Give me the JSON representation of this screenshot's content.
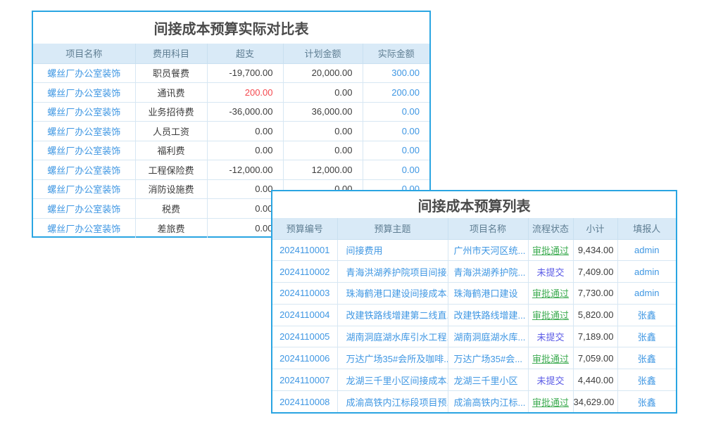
{
  "colors": {
    "accent_border": "#2aa5e2",
    "header_bg": "#d9eaf7",
    "header_text": "#5e7d92",
    "grid_line": "#d7e7f3",
    "link_blue": "#3f97e3",
    "overspend_red": "#f4494f",
    "approved_green": "#3cab50",
    "unsubmitted_purple": "#5a5ae6",
    "body_text": "#3c3c3c",
    "title_text": "#4a4a4a"
  },
  "compare_table": {
    "title": "间接成本预算实际对比表",
    "headers": [
      "项目名称",
      "费用科目",
      "超支",
      "计划金额",
      "实际金额"
    ],
    "rows": [
      {
        "project": "螺丝厂办公室装饰",
        "category": "职员餐费",
        "overspend": "-19,700.00",
        "overspend_alert": false,
        "planned": "20,000.00",
        "actual": "300.00"
      },
      {
        "project": "螺丝厂办公室装饰",
        "category": "通讯费",
        "overspend": "200.00",
        "overspend_alert": true,
        "planned": "0.00",
        "actual": "200.00"
      },
      {
        "project": "螺丝厂办公室装饰",
        "category": "业务招待费",
        "overspend": "-36,000.00",
        "overspend_alert": false,
        "planned": "36,000.00",
        "actual": "0.00"
      },
      {
        "project": "螺丝厂办公室装饰",
        "category": "人员工资",
        "overspend": "0.00",
        "overspend_alert": false,
        "planned": "0.00",
        "actual": "0.00"
      },
      {
        "project": "螺丝厂办公室装饰",
        "category": "福利费",
        "overspend": "0.00",
        "overspend_alert": false,
        "planned": "0.00",
        "actual": "0.00"
      },
      {
        "project": "螺丝厂办公室装饰",
        "category": "工程保险费",
        "overspend": "-12,000.00",
        "overspend_alert": false,
        "planned": "12,000.00",
        "actual": "0.00"
      },
      {
        "project": "螺丝厂办公室装饰",
        "category": "消防设施费",
        "overspend": "0.00",
        "overspend_alert": false,
        "planned": "0.00",
        "actual": "0.00"
      },
      {
        "project": "螺丝厂办公室装饰",
        "category": "税费",
        "overspend": "0.00",
        "overspend_alert": false,
        "planned": "",
        "actual": ""
      },
      {
        "project": "螺丝厂办公室装饰",
        "category": "差旅费",
        "overspend": "0.00",
        "overspend_alert": false,
        "planned": "",
        "actual": ""
      }
    ]
  },
  "list_table": {
    "title": "间接成本预算列表",
    "headers": [
      "预算编号",
      "预算主题",
      "项目名称",
      "流程状态",
      "小计",
      "填报人"
    ],
    "status_legend": {
      "approved": "审批通过",
      "unsubmitted": "未提交"
    },
    "rows": [
      {
        "budget_no": "2024110001",
        "subject": "间接费用",
        "project": "广州市天河区统...",
        "status": "审批通过",
        "status_type": "approved",
        "subtotal": "9,434.00",
        "filler": "admin"
      },
      {
        "budget_no": "2024110002",
        "subject": "青海洪湖养护院项目间接...",
        "project": "青海洪湖养护院...",
        "status": "未提交",
        "status_type": "unsubmitted",
        "subtotal": "7,409.00",
        "filler": "admin"
      },
      {
        "budget_no": "2024110003",
        "subject": "珠海鹤港口建设间接成本...",
        "project": "珠海鹤港口建设",
        "status": "审批通过",
        "status_type": "approved",
        "subtotal": "7,730.00",
        "filler": "admin"
      },
      {
        "budget_no": "2024110004",
        "subject": "改建铁路线增建第二线直...",
        "project": "改建铁路线增建...",
        "status": "审批通过",
        "status_type": "approved",
        "subtotal": "5,820.00",
        "filler": "张鑫"
      },
      {
        "budget_no": "2024110005",
        "subject": "湖南洞庭湖水库引水工程...",
        "project": "湖南洞庭湖水库...",
        "status": "未提交",
        "status_type": "unsubmitted",
        "subtotal": "7,189.00",
        "filler": "张鑫"
      },
      {
        "budget_no": "2024110006",
        "subject": "万达广场35#会所及咖啡...",
        "project": "万达广场35#会...",
        "status": "审批通过",
        "status_type": "approved",
        "subtotal": "7,059.00",
        "filler": "张鑫"
      },
      {
        "budget_no": "2024110007",
        "subject": "龙湖三千里小区间接成本...",
        "project": "龙湖三千里小区",
        "status": "未提交",
        "status_type": "unsubmitted",
        "subtotal": "4,440.00",
        "filler": "张鑫"
      },
      {
        "budget_no": "2024110008",
        "subject": "成渝高铁内江标段项目预...",
        "project": "成渝高铁内江标...",
        "status": "审批通过",
        "status_type": "approved",
        "subtotal": "34,629.00",
        "filler": "张鑫"
      }
    ]
  }
}
